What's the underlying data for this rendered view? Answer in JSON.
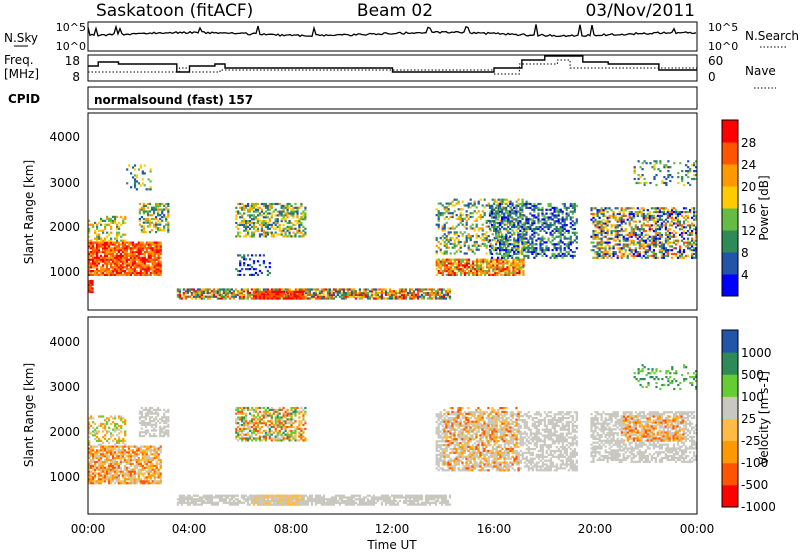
{
  "header": {
    "station": "Saskatoon (fitACF)",
    "beam": "Beam 02",
    "date": "03/Nov/2011"
  },
  "noise_panel": {
    "left_label": "N.Sky",
    "right_label": "N.Search",
    "left_ticks": [
      "10^5",
      "10^0"
    ],
    "right_ticks": [
      "10^5",
      "10^0"
    ]
  },
  "freq_panel": {
    "left_label_1": "Freq.",
    "left_label_2": "[MHz]",
    "left_ticks": [
      "18",
      "8"
    ],
    "right_label": "Nave",
    "right_ticks": [
      "60",
      "0"
    ]
  },
  "cpid": {
    "label": "CPID",
    "value": "normalsound (fast) 157"
  },
  "colors": {
    "power": [
      "#0000ff",
      "#2255aa",
      "#2e8b57",
      "#66bb44",
      "#ffcc00",
      "#ff9900",
      "#ff5500",
      "#ff0000"
    ],
    "velocity": [
      "#ff0000",
      "#ff5500",
      "#ff9900",
      "#ffbb44",
      "#c8c8c0",
      "#66cc33",
      "#2e8b57",
      "#2255aa"
    ]
  },
  "chart_data": [
    {
      "type": "heatmap",
      "name": "power",
      "ylabel": "Slant Range [km]",
      "yticks": [
        "4000",
        "3000",
        "2000",
        "1000"
      ],
      "colorbar_label": "Power [dB]",
      "colorbar_ticks": [
        "28",
        "24",
        "20",
        "16",
        "12",
        "8",
        "4"
      ]
    },
    {
      "type": "heatmap",
      "name": "velocity",
      "ylabel": "Slant Range [km]",
      "yticks": [
        "4000",
        "3000",
        "2000",
        "1000"
      ],
      "colorbar_label": "Velocity [m s-1]",
      "colorbar_ticks": [
        "1000",
        "500",
        "100",
        "25",
        "-25",
        "-100",
        "-500",
        "-1000"
      ]
    }
  ],
  "xaxis": {
    "label": "Time UT",
    "ticks": [
      "00:00",
      "04:00",
      "08:00",
      "12:00",
      "16:00",
      "20:00",
      "00:00"
    ]
  }
}
